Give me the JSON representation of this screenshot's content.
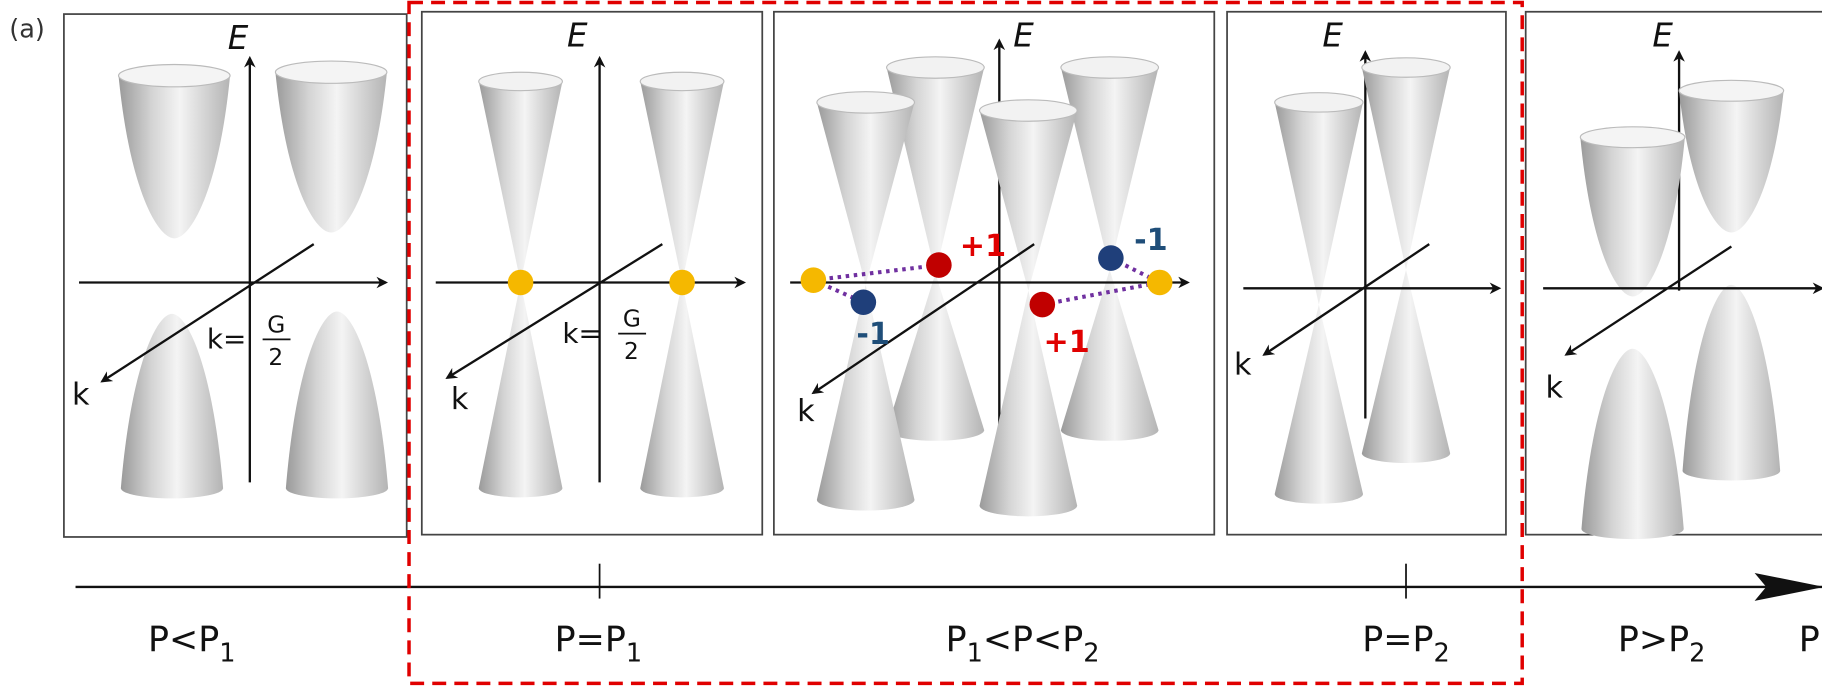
{
  "figure_label": "(a)",
  "panels": [
    {
      "energy_axis": "E",
      "momentum_axis": "k",
      "k_point": {
        "prefix": "k=",
        "numerator": "G",
        "denominator": "2"
      }
    },
    {
      "energy_axis": "E",
      "momentum_axis": "k",
      "k_point": {
        "prefix": "k=",
        "numerator": "G",
        "denominator": "2"
      }
    },
    {
      "energy_axis": "E",
      "momentum_axis": "k",
      "charges": [
        "+1",
        "-1",
        "-1",
        "+1"
      ]
    },
    {
      "energy_axis": "E",
      "momentum_axis": "k"
    },
    {
      "energy_axis": "E",
      "momentum_axis": "k"
    }
  ],
  "pressure_axis": {
    "label": "P",
    "regions": [
      [
        {
          "text": "P<P",
          "subscript": false
        },
        {
          "text": "1",
          "subscript": true
        }
      ],
      [
        {
          "text": "P=P",
          "subscript": false
        },
        {
          "text": "1",
          "subscript": true
        }
      ],
      [
        {
          "text": "P",
          "subscript": false
        },
        {
          "text": "1",
          "subscript": true
        },
        {
          "text": "<P<P",
          "subscript": false
        },
        {
          "text": "2",
          "subscript": true
        }
      ],
      [
        {
          "text": "P=P",
          "subscript": false
        },
        {
          "text": "2",
          "subscript": true
        }
      ],
      [
        {
          "text": "P>P",
          "subscript": false
        },
        {
          "text": "2",
          "subscript": true
        }
      ]
    ]
  }
}
